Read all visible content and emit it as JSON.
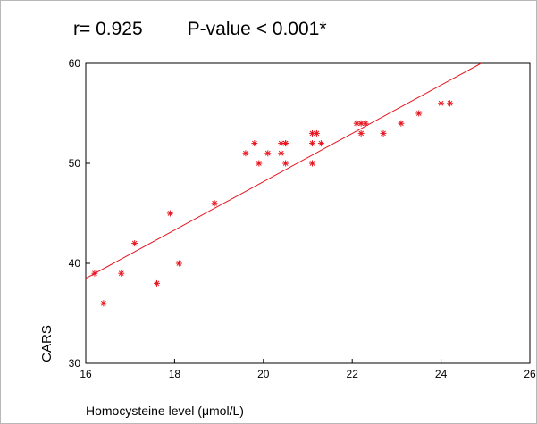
{
  "header": {
    "r_text": "r= 0.925",
    "p_text": "P-value < 0.001*"
  },
  "chart_data": {
    "type": "scatter",
    "title": "",
    "xlabel": "Homocysteine level (μmol/L)",
    "ylabel": "CARS",
    "xlim": [
      16,
      26
    ],
    "ylim": [
      30,
      60
    ],
    "xticks": [
      16,
      18,
      20,
      22,
      24,
      26
    ],
    "yticks": [
      30,
      40,
      50,
      60
    ],
    "grid": false,
    "marker": "asterisk",
    "color": "#e8141e",
    "series": [
      {
        "x": [
          16.2,
          16.4,
          16.8,
          17.1,
          17.6,
          17.9,
          18.1,
          18.9,
          19.6,
          19.8,
          19.9,
          20.1,
          20.4,
          20.4,
          20.5,
          20.5,
          20.5,
          21.1,
          21.1,
          21.1,
          21.2,
          21.3,
          22.1,
          22.2,
          22.2,
          22.3,
          22.7,
          23.1,
          23.5,
          24.0,
          24.2
        ],
        "y": [
          39,
          36,
          39,
          42,
          38,
          45,
          40,
          46,
          51,
          52,
          50,
          51,
          51,
          52,
          52,
          50,
          52,
          53,
          52,
          50,
          53,
          52,
          54,
          54,
          53,
          54,
          53,
          54,
          55,
          56,
          56
        ]
      }
    ],
    "fit_line": {
      "x": [
        16,
        24.9
      ],
      "y": [
        38.5,
        60
      ]
    }
  }
}
